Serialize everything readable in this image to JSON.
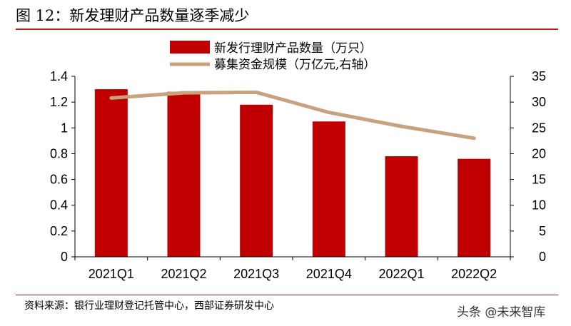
{
  "header": {
    "title": "图 12：新发理财产品数量逐季减少"
  },
  "chart_data": {
    "type": "bar",
    "categories": [
      "2021Q1",
      "2021Q2",
      "2021Q3",
      "2021Q4",
      "2022Q1",
      "2022Q2"
    ],
    "series": [
      {
        "name": "新发行理财产品数量（万只）",
        "type": "bar",
        "axis": "left",
        "values": [
          1.3,
          1.28,
          1.18,
          1.05,
          0.78,
          0.76
        ],
        "color": "#c00000"
      },
      {
        "name": "募集资金规模（万亿元,右轴）",
        "type": "line",
        "axis": "right",
        "values": [
          30.8,
          31.8,
          31.9,
          28.0,
          25.3,
          23.0
        ],
        "color": "#c8a27c"
      }
    ],
    "y_left": {
      "lim": [
        0,
        1.4
      ],
      "ticks": [
        "0",
        "0.2",
        "0.4",
        "0.6",
        "0.8",
        "1",
        "1.2",
        "1.4"
      ]
    },
    "y_right": {
      "lim": [
        0,
        35
      ],
      "ticks": [
        "0",
        "5",
        "10",
        "15",
        "20",
        "25",
        "30",
        "35"
      ]
    },
    "legend_position": "top-center",
    "grid": false
  },
  "footer": {
    "source": "资料来源：银行业理财登记托管中心，西部证券研发中心",
    "watermark": "头条 @未来智库"
  }
}
